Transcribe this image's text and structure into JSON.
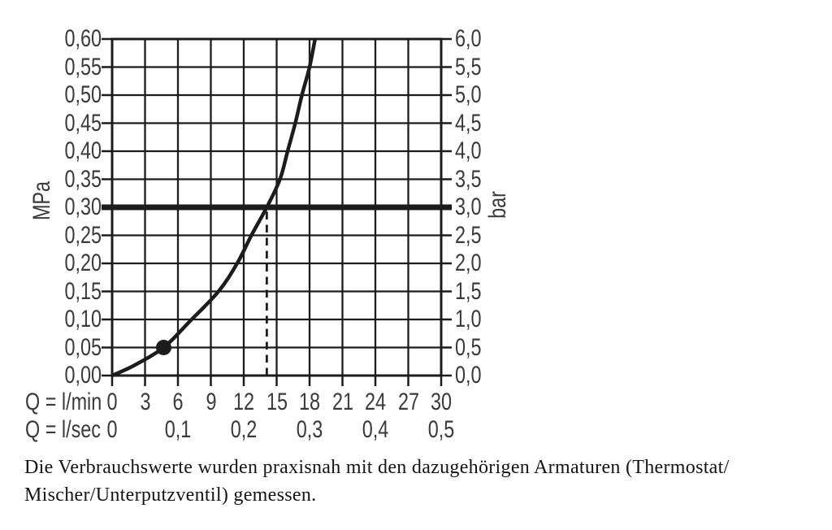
{
  "chart_data": {
    "type": "line",
    "description": "Flow rate vs pressure diagram",
    "x_axis": {
      "row_lmin": {
        "label": "Q = l/min",
        "ticks": [
          "0",
          "3",
          "6",
          "9",
          "12",
          "15",
          "18",
          "21",
          "24",
          "27",
          "30"
        ],
        "range": [
          0,
          30
        ],
        "step": 3
      },
      "row_lsec": {
        "label": "Q = l/sec",
        "ticks": [
          {
            "label": "0",
            "lmin": 0
          },
          {
            "label": "0,1",
            "lmin": 6
          },
          {
            "label": "0,2",
            "lmin": 12
          },
          {
            "label": "0,3",
            "lmin": 18
          },
          {
            "label": "0,4",
            "lmin": 24
          },
          {
            "label": "0,5",
            "lmin": 30
          }
        ]
      }
    },
    "y_axis_left": {
      "unit": "MPa",
      "ticks": [
        "0,60",
        "0,55",
        "0,50",
        "0,45",
        "0,40",
        "0,35",
        "0,30",
        "0,25",
        "0,20",
        "0,15",
        "0,10",
        "0,05",
        "0,00"
      ],
      "range": [
        0,
        0.6
      ],
      "step": 0.05
    },
    "y_axis_right": {
      "unit": "bar",
      "ticks": [
        "6,0",
        "5,5",
        "5,0",
        "4,5",
        "4,0",
        "3,5",
        "3,0",
        "2,5",
        "2,0",
        "1,5",
        "1,0",
        "0,5",
        "0,0"
      ],
      "range": [
        0,
        6
      ],
      "step": 0.5
    },
    "grid": true,
    "curve_points_lmin_mpa": [
      [
        0,
        0
      ],
      [
        2,
        0.018
      ],
      [
        4.7,
        0.05
      ],
      [
        7,
        0.095
      ],
      [
        9.7,
        0.15
      ],
      [
        11.4,
        0.2
      ],
      [
        12.7,
        0.25
      ],
      [
        14.1,
        0.3
      ],
      [
        15.3,
        0.35
      ],
      [
        16.0,
        0.4
      ],
      [
        16.7,
        0.45
      ],
      [
        17.3,
        0.5
      ],
      [
        18.0,
        0.55
      ],
      [
        18.5,
        0.6
      ]
    ],
    "marker_point_lmin_mpa": [
      4.7,
      0.05
    ],
    "reference_line_mpa": 0.3,
    "dashed_line_lmin": 14.1
  },
  "caption": {
    "line1": "Die Verbrauchswerte wurden praxisnah mit den dazugehörigen Armaturen (Thermostat/",
    "line2": "Mischer/Unterputzventil) gemessen."
  },
  "colors": {
    "line": "#1c1c1c",
    "axis_text": "#3a3a3a",
    "caption_text": "#141414",
    "background": "#ffffff"
  }
}
